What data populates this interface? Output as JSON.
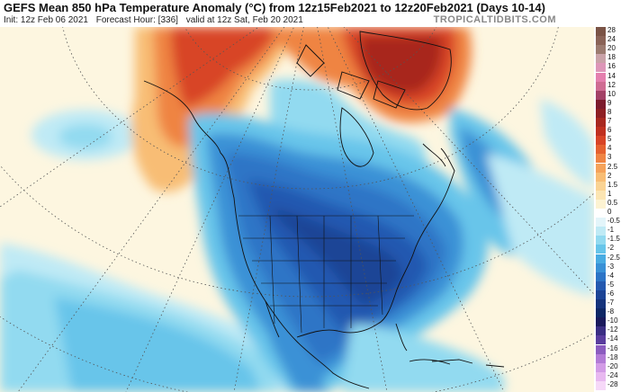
{
  "header": {
    "title": "GEFS Mean 850 hPa Temperature Anomaly (°C) from 12z15Feb2021 to 12z20Feb2021 (Days 10-14)",
    "init": "Init: 12z Feb 06 2021",
    "forecast_hour": "Forecast Hour: [336]",
    "valid": "valid at 12z Sat, Feb 20 2021",
    "brand": "TROPICALTIDBITS.COM"
  },
  "colorbar": [
    {
      "label": "28",
      "color": "#7a5346"
    },
    {
      "label": "24",
      "color": "#8a6357"
    },
    {
      "label": "20",
      "color": "#9c7b70"
    },
    {
      "label": "18",
      "color": "#c9a2a8"
    },
    {
      "label": "16",
      "color": "#dd96b8"
    },
    {
      "label": "14",
      "color": "#e47fae"
    },
    {
      "label": "12",
      "color": "#cf6c93"
    },
    {
      "label": "10",
      "color": "#a34166"
    },
    {
      "label": "9",
      "color": "#7c1b2c"
    },
    {
      "label": "8",
      "color": "#8e1f23"
    },
    {
      "label": "7",
      "color": "#a8281f"
    },
    {
      "label": "6",
      "color": "#c0301f"
    },
    {
      "label": "5",
      "color": "#d84426"
    },
    {
      "label": "4",
      "color": "#e5612f"
    },
    {
      "label": "3",
      "color": "#ef8443"
    },
    {
      "label": "2.5",
      "color": "#f5a25a"
    },
    {
      "label": "2",
      "color": "#f8bd74"
    },
    {
      "label": "1.5",
      "color": "#fad393"
    },
    {
      "label": "1",
      "color": "#fce5b2"
    },
    {
      "label": "0.5",
      "color": "#fdf3d2"
    },
    {
      "label": "0",
      "color": "#ffffff"
    },
    {
      "label": "-0.5",
      "color": "#e3f5fa"
    },
    {
      "label": "-1",
      "color": "#bfeaf5"
    },
    {
      "label": "-1.5",
      "color": "#92daf0"
    },
    {
      "label": "-2",
      "color": "#67c5ea"
    },
    {
      "label": "-2.5",
      "color": "#49ace2"
    },
    {
      "label": "-3",
      "color": "#3a91d6"
    },
    {
      "label": "-4",
      "color": "#2d74c6"
    },
    {
      "label": "-5",
      "color": "#2459b0"
    },
    {
      "label": "-6",
      "color": "#1c4496"
    },
    {
      "label": "-7",
      "color": "#15337c"
    },
    {
      "label": "-8",
      "color": "#0f2766"
    },
    {
      "label": "-10",
      "color": "#1a1a5c"
    },
    {
      "label": "-12",
      "color": "#3a2e83"
    },
    {
      "label": "-14",
      "color": "#5a3d9e"
    },
    {
      "label": "-16",
      "color": "#8b5cbf"
    },
    {
      "label": "-18",
      "color": "#b27bd6"
    },
    {
      "label": "-20",
      "color": "#d29be6"
    },
    {
      "label": "-24",
      "color": "#e8b8f0"
    },
    {
      "label": "-28",
      "color": "#f6d8f8"
    }
  ]
}
